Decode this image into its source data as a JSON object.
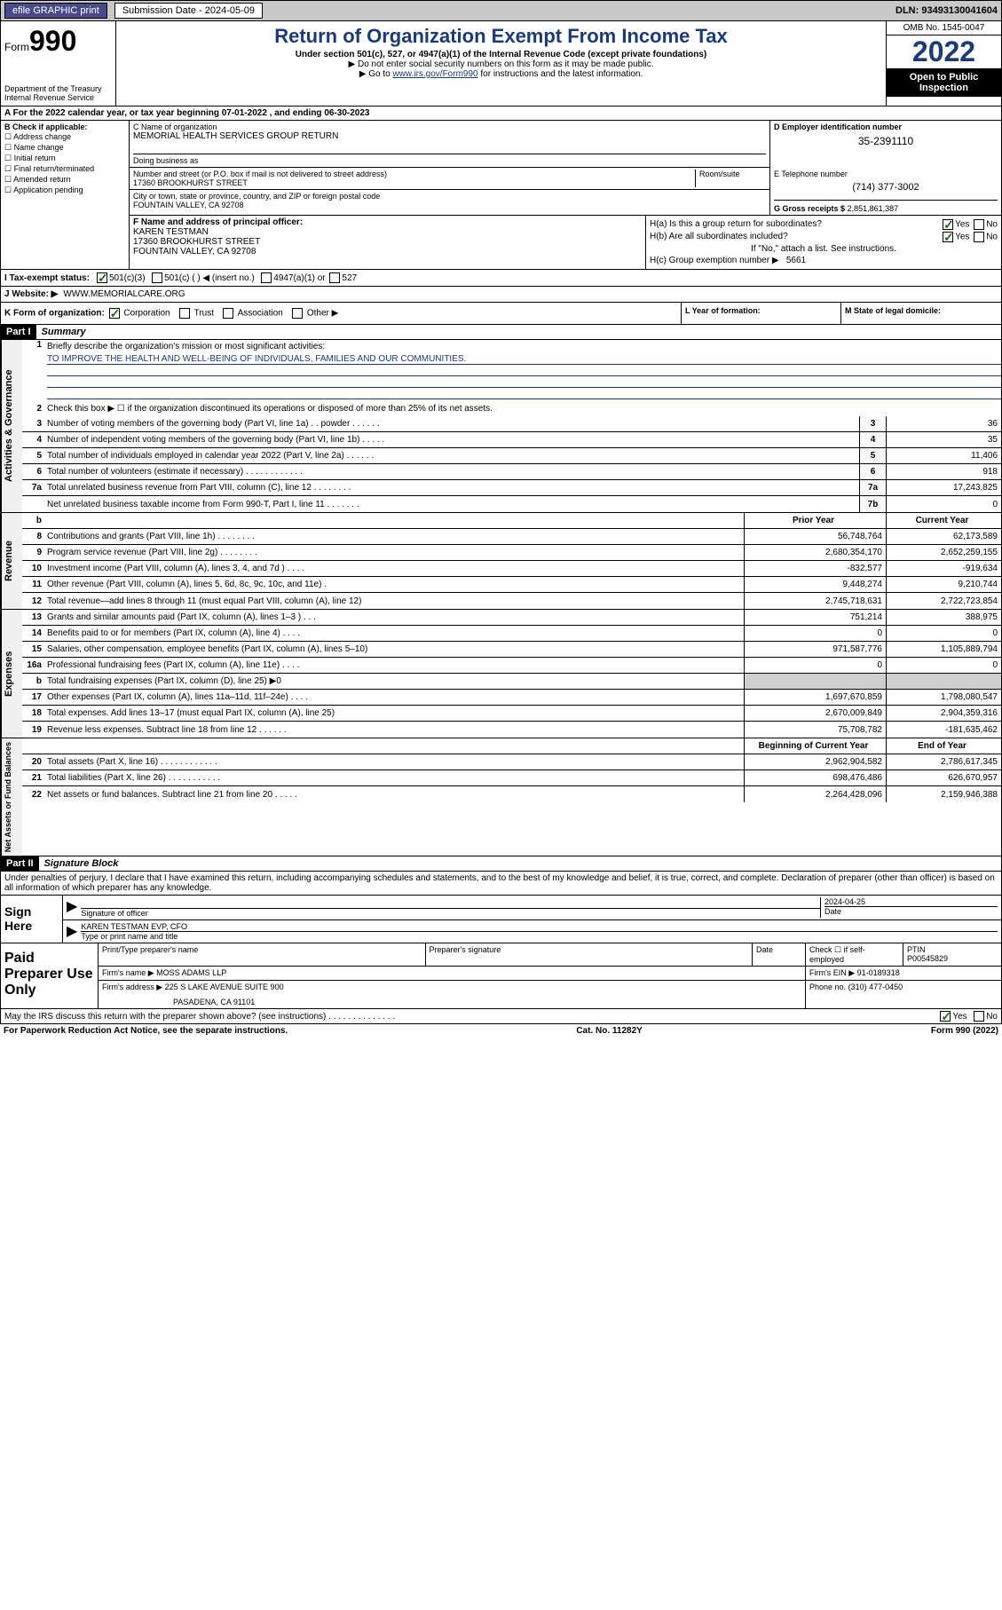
{
  "topbar": {
    "efile": "efile GRAPHIC print",
    "sub_label": "Submission Date - 2024-05-09",
    "dln": "DLN: 93493130041604"
  },
  "header": {
    "form_word": "Form",
    "form_num": "990",
    "dept": "Department of the Treasury",
    "irs": "Internal Revenue Service",
    "title": "Return of Organization Exempt From Income Tax",
    "sub": "Under section 501(c), 527, or 4947(a)(1) of the Internal Revenue Code (except private foundations)",
    "note1": "▶ Do not enter social security numbers on this form as it may be made public.",
    "note2_pre": "▶ Go to ",
    "note2_link": "www.irs.gov/Form990",
    "note2_post": " for instructions and the latest information.",
    "omb": "OMB No. 1545-0047",
    "year": "2022",
    "inspect": "Open to Public Inspection"
  },
  "rowA": "A For the 2022 calendar year, or tax year beginning 07-01-2022    , and ending 06-30-2023",
  "secB": {
    "title": "B Check if applicable:",
    "opts": [
      "Address change",
      "Name change",
      "Initial return",
      "Final return/terminated",
      "Amended return",
      "Application pending"
    ]
  },
  "secC": {
    "name_lbl": "C Name of organization",
    "name": "MEMORIAL HEALTH SERVICES GROUP RETURN",
    "dba_lbl": "Doing business as",
    "addr_lbl": "Number and street (or P.O. box if mail is not delivered to street address)",
    "room_lbl": "Room/suite",
    "addr": "17360 BROOKHURST STREET",
    "city_lbl": "City or town, state or province, country, and ZIP or foreign postal code",
    "city": "FOUNTAIN VALLEY, CA  92708"
  },
  "secD": {
    "lbl": "D Employer identification number",
    "val": "35-2391110"
  },
  "secE": {
    "lbl": "E Telephone number",
    "val": "(714) 377-3002",
    "g_lbl": "G Gross receipts $",
    "g_val": "2,851,861,387"
  },
  "secF": {
    "lbl": "F Name and address of principal officer:",
    "name": "KAREN TESTMAN",
    "addr1": "17360 BROOKHURST STREET",
    "addr2": "FOUNTAIN VALLEY, CA  92708"
  },
  "secH": {
    "ha": "H(a)  Is this a group return for subordinates?",
    "hb": "H(b)  Are all subordinates included?",
    "hb_note": "If \"No,\" attach a list. See instructions.",
    "hc": "H(c)  Group exemption number ▶",
    "hc_val": "5661"
  },
  "rowI": {
    "lbl": "I   Tax-exempt status:",
    "o1": "501(c)(3)",
    "o2": "501(c) (   ) ◀ (insert no.)",
    "o3": "4947(a)(1) or",
    "o4": "527"
  },
  "rowJ": {
    "lbl": "J   Website: ▶",
    "val": "WWW.MEMORIALCARE.ORG"
  },
  "rowK": "K Form of organization:",
  "rowK_opts": [
    "Corporation",
    "Trust",
    "Association",
    "Other ▶"
  ],
  "rowL": "L Year of formation:",
  "rowM": "M State of legal domicile:",
  "part1": {
    "hdr": "Part I",
    "title": "Summary",
    "l1": "Briefly describe the organization's mission or most significant activities:",
    "mission": "TO IMPROVE THE HEALTH AND WELL-BEING OF INDIVIDUALS, FAMILIES AND OUR COMMUNITIES.",
    "l2": "Check this box ▶ ☐ if the organization discontinued its operations or disposed of more than 25% of its net assets.",
    "tabs": {
      "ag": "Activities & Governance",
      "rev": "Revenue",
      "exp": "Expenses",
      "na": "Net Assets or Fund Balances"
    },
    "lines_ag": [
      {
        "n": "3",
        "d": "Number of voting members of the governing body (Part VI, line 1a)  .    .    powder .    .    .    .    .    .",
        "b": "3",
        "v": "36"
      },
      {
        "n": "4",
        "d": "Number of independent voting members of the governing body (Part VI, line 1b)  .    .    .    .    .",
        "b": "4",
        "v": "35"
      },
      {
        "n": "5",
        "d": "Total number of individuals employed in calendar year 2022 (Part V, line 2a)  .    .    .    .    .    .",
        "b": "5",
        "v": "11,406"
      },
      {
        "n": "6",
        "d": "Total number of volunteers (estimate if necessary)  .    .    .    .    .    .    .    .    .    .    .    .",
        "b": "6",
        "v": "918"
      },
      {
        "n": "7a",
        "d": "Total unrelated business revenue from Part VIII, column (C), line 12  .    .    .    .    .    .    .    .",
        "b": "7a",
        "v": "17,243,825"
      },
      {
        "n": "",
        "d": "Net unrelated business taxable income from Form 990-T, Part I, line 11  .    .    .    .    .    .    .",
        "b": "7b",
        "v": "0"
      }
    ],
    "yr_prior": "Prior Year",
    "yr_curr": "Current Year",
    "lines_rev": [
      {
        "n": "8",
        "d": "Contributions and grants (Part VIII, line 1h)  .    .    .    .    .    .    .    .",
        "p": "56,748,764",
        "c": "62,173,589"
      },
      {
        "n": "9",
        "d": "Program service revenue (Part VIII, line 2g)  .    .    .    .    .    .    .    .",
        "p": "2,680,354,170",
        "c": "2,652,259,155"
      },
      {
        "n": "10",
        "d": "Investment income (Part VIII, column (A), lines 3, 4, and 7d )  .    .    .    .",
        "p": "-832,577",
        "c": "-919,634"
      },
      {
        "n": "11",
        "d": "Other revenue (Part VIII, column (A), lines 5, 6d, 8c, 9c, 10c, and 11e)  .",
        "p": "9,448,274",
        "c": "9,210,744"
      },
      {
        "n": "12",
        "d": "Total revenue—add lines 8 through 11 (must equal Part VIII, column (A), line 12)",
        "p": "2,745,718,631",
        "c": "2,722,723,854"
      }
    ],
    "lines_exp": [
      {
        "n": "13",
        "d": "Grants and similar amounts paid (Part IX, column (A), lines 1–3 )  .    .    .",
        "p": "751,214",
        "c": "388,975"
      },
      {
        "n": "14",
        "d": "Benefits paid to or for members (Part IX, column (A), line 4)  .    .    .    .",
        "p": "0",
        "c": "0"
      },
      {
        "n": "15",
        "d": "Salaries, other compensation, employee benefits (Part IX, column (A), lines 5–10)",
        "p": "971,587,776",
        "c": "1,105,889,794"
      },
      {
        "n": "16a",
        "d": "Professional fundraising fees (Part IX, column (A), line 11e)  .    .    .    .",
        "p": "0",
        "c": "0"
      },
      {
        "n": "b",
        "d": "Total fundraising expenses (Part IX, column (D), line 25) ▶0",
        "p": "",
        "c": "",
        "grey": true
      },
      {
        "n": "17",
        "d": "Other expenses (Part IX, column (A), lines 11a–11d, 11f–24e)  .    .    .    .",
        "p": "1,697,670,859",
        "c": "1,798,080,547"
      },
      {
        "n": "18",
        "d": "Total expenses. Add lines 13–17 (must equal Part IX, column (A), line 25)",
        "p": "2,670,009,849",
        "c": "2,904,359,316"
      },
      {
        "n": "19",
        "d": "Revenue less expenses. Subtract line 18 from line 12  .    .    .    .    .    .",
        "p": "75,708,782",
        "c": "-181,635,462"
      }
    ],
    "na_hdr_p": "Beginning of Current Year",
    "na_hdr_c": "End of Year",
    "lines_na": [
      {
        "n": "20",
        "d": "Total assets (Part X, line 16)  .    .    .    .    .    .    .    .    .    .    .    .",
        "p": "2,962,904,582",
        "c": "2,786,617,345"
      },
      {
        "n": "21",
        "d": "Total liabilities (Part X, line 26)  .    .    .    .    .    .    .    .    .    .    .",
        "p": "698,476,486",
        "c": "626,670,957"
      },
      {
        "n": "22",
        "d": "Net assets or fund balances. Subtract line 21 from line 20  .    .    .    .    .",
        "p": "2,264,428,096",
        "c": "2,159,946,388"
      }
    ]
  },
  "part2": {
    "hdr": "Part II",
    "title": "Signature Block",
    "decl": "Under penalties of perjury, I declare that I have examined this return, including accompanying schedules and statements, and to the best of my knowledge and belief, it is true, correct, and complete. Declaration of preparer (other than officer) is based on all information of which preparer has any knowledge.",
    "sign_here": "Sign Here",
    "sig_officer": "Signature of officer",
    "sig_date": "Date",
    "sig_date_val": "2024-04-25",
    "sig_name": "KAREN TESTMAN EVP, CFO",
    "sig_name_lbl": "Type or print name and title",
    "paid": "Paid Preparer Use Only",
    "p_name_lbl": "Print/Type preparer's name",
    "p_sig_lbl": "Preparer's signature",
    "p_date_lbl": "Date",
    "p_check": "Check ☐ if self-employed",
    "ptin_lbl": "PTIN",
    "ptin": "P00545829",
    "firm_name_lbl": "Firm's name    ▶",
    "firm_name": "MOSS ADAMS LLP",
    "firm_ein_lbl": "Firm's EIN ▶",
    "firm_ein": "91-0189318",
    "firm_addr_lbl": "Firm's address ▶",
    "firm_addr": "225 S LAKE AVENUE SUITE 900",
    "firm_city": "PASADENA, CA  91101",
    "phone_lbl": "Phone no.",
    "phone": "(310) 477-0450",
    "discuss": "May the IRS discuss this return with the preparer shown above? (see instructions)  .    .    .    .    .    .    .    .    .    .    .    .    .    ."
  },
  "footer": {
    "pra": "For Paperwork Reduction Act Notice, see the separate instructions.",
    "cat": "Cat. No. 11282Y",
    "form": "Form 990 (2022)"
  }
}
